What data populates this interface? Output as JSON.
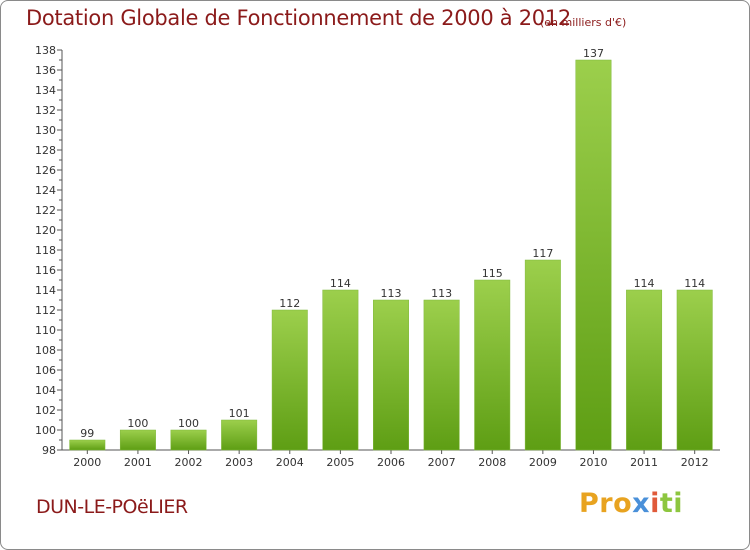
{
  "header": {
    "title": "Dotation Globale de Fonctionnement de 2000 à 2012",
    "subtitle": "(en milliers d'€)"
  },
  "footer": {
    "commune": "DUN-LE-POëLIER",
    "brand": [
      "Pro",
      "x",
      "i",
      "ti"
    ]
  },
  "colors": {
    "bar_light": "#9ccf4c",
    "bar_dark": "#5e9e14",
    "title": "#8b1a1a",
    "axis": "#555555"
  },
  "chart_data": {
    "type": "bar",
    "categories": [
      "2000",
      "2001",
      "2002",
      "2003",
      "2004",
      "2005",
      "2006",
      "2007",
      "2008",
      "2009",
      "2010",
      "2011",
      "2012"
    ],
    "values": [
      99,
      100,
      100,
      101,
      112,
      114,
      113,
      113,
      115,
      117,
      137,
      114,
      114
    ],
    "ylim": [
      98,
      138
    ],
    "yticks": [
      98,
      100,
      102,
      104,
      106,
      108,
      110,
      112,
      114,
      116,
      118,
      120,
      122,
      124,
      126,
      128,
      130,
      132,
      134,
      136,
      138
    ],
    "grid": false,
    "data_labels": true
  }
}
